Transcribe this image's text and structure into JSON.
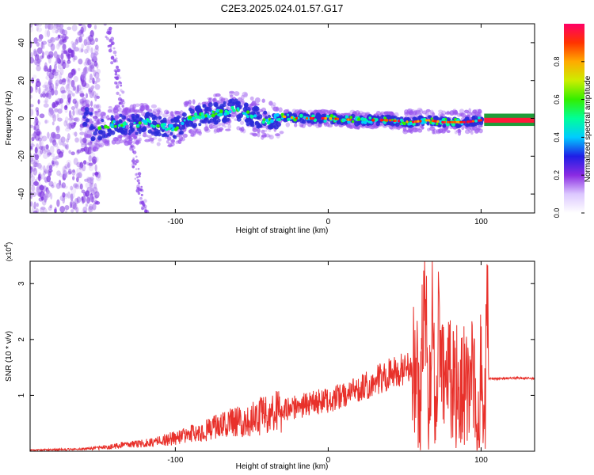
{
  "title": "C2E3.2025.024.01.57.G17",
  "colors": {
    "snr_line": "#e8302a",
    "track_low": "#9955ee",
    "track_core": "#2a2ad8"
  },
  "chart_data": [
    {
      "type": "heatmap",
      "name": "spectrogram",
      "xlabel": "Height of straight line (km)",
      "ylabel": "Frequency (Hz)",
      "xlim": [
        -195,
        135
      ],
      "ylim": [
        -50,
        50
      ],
      "xticks": [
        -100,
        0,
        100
      ],
      "xtick_labels": [
        "-100",
        "0",
        "100"
      ],
      "yticks": [
        -40,
        -20,
        0,
        20,
        40
      ],
      "ytick_labels": [
        "-40",
        "-20",
        "0",
        "20",
        "40"
      ],
      "colorbar": {
        "label": "Normalized spectral amplitude",
        "range": [
          0,
          1
        ],
        "ticks": [
          0.0,
          0.2,
          0.4,
          0.6,
          0.8
        ],
        "tick_labels": [
          "0.0",
          "0.2",
          "0.4",
          "0.6",
          "0.8"
        ],
        "colormap": [
          "#ffffff",
          "#dcc8ff",
          "#8a2be2",
          "#1e1ee6",
          "#00ccff",
          "#00ff99",
          "#33ee00",
          "#ccee00",
          "#ffaa00",
          "#ff3300",
          "#ff0066"
        ]
      },
      "track_center": [
        {
          "x": -155,
          "y": -8
        },
        {
          "x": -150,
          "y": -6
        },
        {
          "x": -140,
          "y": -3
        },
        {
          "x": -130,
          "y": -4
        },
        {
          "x": -120,
          "y": -2
        },
        {
          "x": -110,
          "y": -4
        },
        {
          "x": -100,
          "y": -5
        },
        {
          "x": -90,
          "y": 0
        },
        {
          "x": -80,
          "y": 2
        },
        {
          "x": -70,
          "y": 3
        },
        {
          "x": -60,
          "y": 5
        },
        {
          "x": -50,
          "y": 1
        },
        {
          "x": -40,
          "y": -1
        },
        {
          "x": -30,
          "y": 1
        },
        {
          "x": -20,
          "y": 0
        },
        {
          "x": 0,
          "y": 0
        },
        {
          "x": 20,
          "y": -1
        },
        {
          "x": 40,
          "y": -1
        },
        {
          "x": 55,
          "y": -2
        },
        {
          "x": 65,
          "y": -1
        },
        {
          "x": 75,
          "y": -2
        },
        {
          "x": 90,
          "y": -2
        },
        {
          "x": 100,
          "y": -1
        },
        {
          "x": 135,
          "y": -1
        }
      ]
    },
    {
      "type": "line",
      "name": "snr",
      "xlabel": "Height of straight line (km)",
      "ylabel": "SNR (10 * v/v)",
      "y_multiplier_label": "(x10",
      "y_multiplier_exp": "4",
      "y_multiplier_close": ")",
      "xlim": [
        -195,
        135
      ],
      "ylim": [
        0,
        3.4
      ],
      "xticks": [
        -100,
        0,
        100
      ],
      "xtick_labels": [
        "-100",
        "0",
        "100"
      ],
      "yticks": [
        1,
        2,
        3
      ],
      "ytick_labels": [
        "1",
        "2",
        "3"
      ],
      "series": [
        {
          "x": [
            -195,
            -160,
            -150,
            -140,
            -130,
            -120,
            -110,
            -100,
            -90,
            -80,
            -70,
            -60,
            -50,
            -40,
            -30,
            -20,
            -10,
            0,
            10,
            20,
            30,
            40,
            50,
            55,
            60,
            63,
            66,
            68,
            70,
            72,
            75,
            80,
            85,
            90,
            95,
            98,
            100,
            102,
            104,
            105,
            110,
            120,
            135
          ],
          "y": [
            0.02,
            0.04,
            0.06,
            0.09,
            0.12,
            0.14,
            0.18,
            0.24,
            0.3,
            0.38,
            0.45,
            0.52,
            0.58,
            0.66,
            0.72,
            0.8,
            0.86,
            0.92,
            1.0,
            1.12,
            1.25,
            1.38,
            1.48,
            1.5,
            1.0,
            3.3,
            0.15,
            2.9,
            0.1,
            2.2,
            1.4,
            1.15,
            1.1,
            1.05,
            1.4,
            0.1,
            2.1,
            0.05,
            3.1,
            1.3,
            1.3,
            1.31,
            1.3
          ]
        }
      ]
    }
  ]
}
